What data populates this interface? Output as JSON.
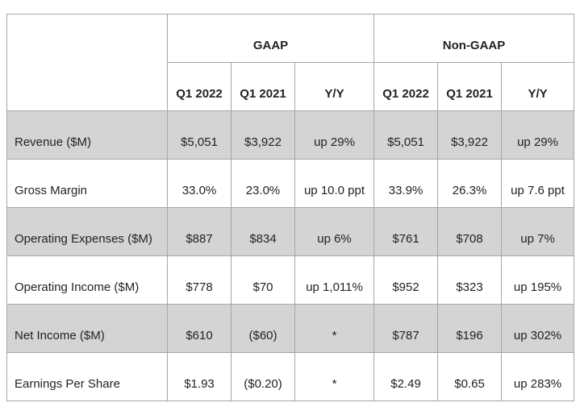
{
  "table": {
    "groups": [
      "GAAP",
      "Non-GAAP"
    ],
    "columns": [
      "Q1 2022",
      "Q1 2021",
      "Y/Y",
      "Q1 2022",
      "Q1 2021",
      "Y/Y"
    ],
    "rows": [
      [
        "Revenue ($M)",
        "$5,051",
        "$3,922",
        "up 29%",
        "$5,051",
        "$3,922",
        "up 29%"
      ],
      [
        "Gross Margin",
        "33.0%",
        "23.0%",
        "up 10.0 ppt",
        "33.9%",
        "26.3%",
        "up 7.6 ppt"
      ],
      [
        "Operating Expenses ($M)",
        "$887",
        "$834",
        "up 6%",
        "$761",
        "$708",
        "up 7%"
      ],
      [
        "Operating Income ($M)",
        "$778",
        "$70",
        "up 1,011%",
        "$952",
        "$323",
        "up 195%"
      ],
      [
        "Net Income ($M)",
        "$610",
        "($60)",
        "*",
        "$787",
        "$196",
        "up 302%"
      ],
      [
        "Earnings Per Share",
        "$1.93",
        "($0.20)",
        "*",
        "$2.49",
        "$0.65",
        "up 283%"
      ]
    ]
  }
}
